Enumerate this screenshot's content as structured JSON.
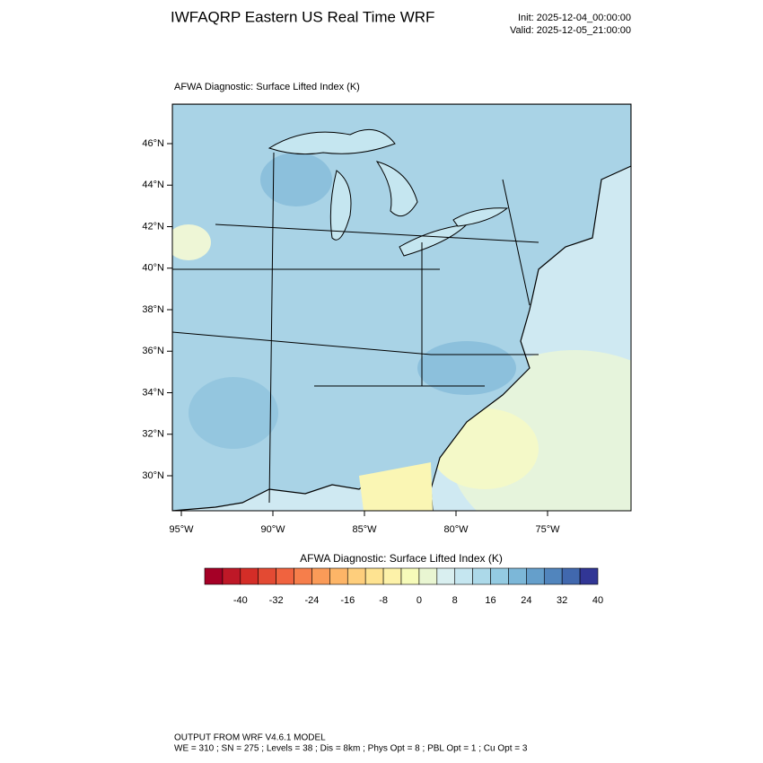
{
  "header": {
    "title": "IWFAQRP Eastern US Real Time WRF",
    "init": "Init: 2025-12-04_00:00:00",
    "valid": "Valid: 2025-12-05_21:00:00"
  },
  "map": {
    "label": "AFWA Diagnostic: Surface Lifted Index   (K)",
    "lat_labels": [
      "46°N",
      "44°N",
      "42°N",
      "40°N",
      "38°N",
      "36°N",
      "34°N",
      "32°N",
      "30°N"
    ],
    "lon_labels": [
      "95°W",
      "90°W",
      "85°W",
      "80°W",
      "75°W"
    ]
  },
  "colorbar": {
    "title": "AFWA Diagnostic: Surface Lifted Index  (K)",
    "colors": [
      "#a50026",
      "#be1827",
      "#d42d27",
      "#e34a33",
      "#f0633f",
      "#f67e4b",
      "#fa9b58",
      "#fdb567",
      "#fece7c",
      "#fee391",
      "#fdf2a9",
      "#f6fbb9",
      "#e9f6d2",
      "#d9eff0",
      "#c5e6f0",
      "#acd9e9",
      "#94cbe2",
      "#7cb7d8",
      "#659fcb",
      "#5185bd",
      "#4168ae",
      "#313695"
    ],
    "labels": [
      -40,
      -32,
      -24,
      -16,
      -8,
      0,
      8,
      16,
      24,
      32,
      40
    ]
  },
  "footer": {
    "line1": "OUTPUT FROM WRF V4.6.1 MODEL",
    "line2": "WE = 310 ; SN = 275 ; Levels = 38 ; Dis = 8km ; Phys Opt = 8 ; PBL Opt = 1 ; Cu Opt = 3"
  }
}
